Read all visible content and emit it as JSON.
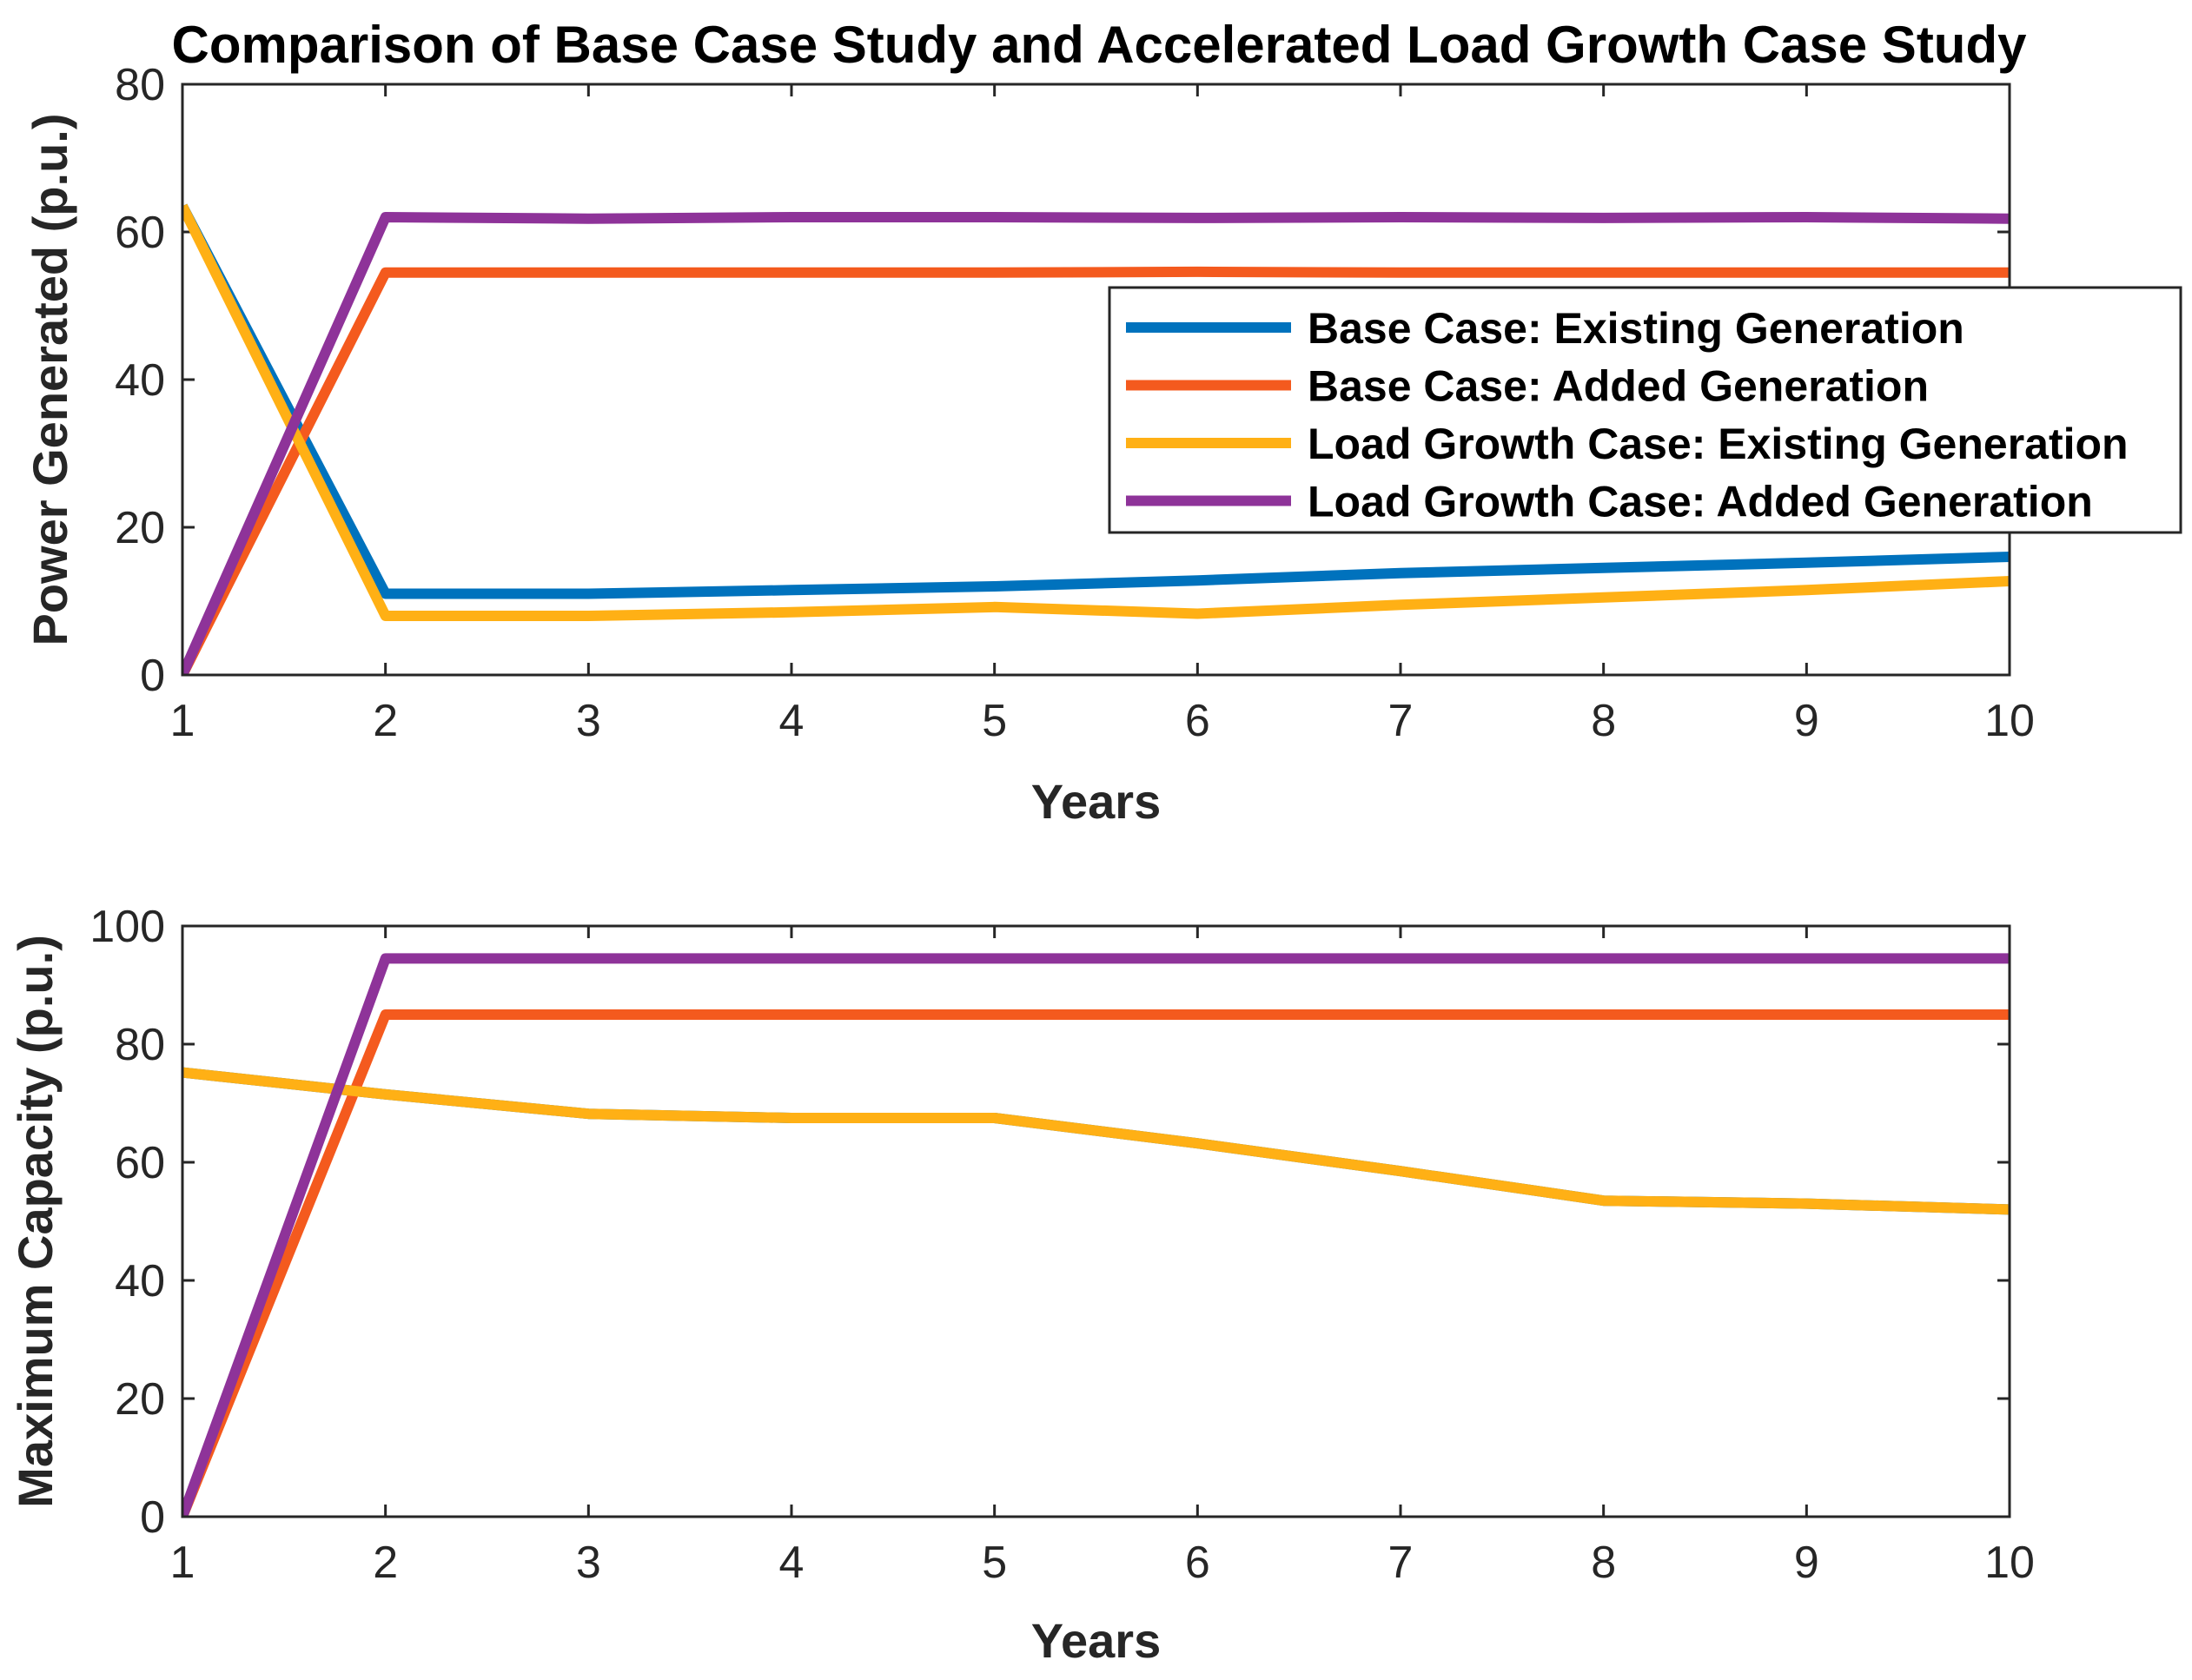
{
  "chart_data": [
    {
      "type": "line",
      "title": "Comparison of Base Case Study and Accelerated Load Growth Case Study",
      "xlabel": "Years",
      "ylabel": "Power Generated (p.u.)",
      "x": [
        1,
        2,
        3,
        4,
        5,
        6,
        7,
        8,
        9,
        10
      ],
      "xlim": [
        1,
        10
      ],
      "ylim": [
        0,
        80
      ],
      "xticks": [
        1,
        2,
        3,
        4,
        5,
        6,
        7,
        8,
        9,
        10
      ],
      "yticks": [
        0,
        20,
        40,
        60,
        80
      ],
      "legend_position": "right",
      "series": [
        {
          "name": "Base Case: Existing Generation",
          "color": "#0072BD",
          "values": [
            63.5,
            11.0,
            11.0,
            11.5,
            12.0,
            12.8,
            13.8,
            14.5,
            15.2,
            16.0
          ]
        },
        {
          "name": "Base Case: Added Generation",
          "color": "#F45A1E",
          "values": [
            0,
            54.5,
            54.5,
            54.5,
            54.5,
            54.6,
            54.5,
            54.5,
            54.5,
            54.5
          ]
        },
        {
          "name": "Load Growth Case: Existing Generation",
          "color": "#FFB015",
          "values": [
            63.5,
            8.0,
            8.0,
            8.5,
            9.2,
            8.3,
            9.5,
            10.5,
            11.5,
            12.7
          ]
        },
        {
          "name": "Load Growth Case: Added Generation",
          "color": "#8E3399",
          "values": [
            0,
            62.0,
            61.8,
            62.0,
            62.0,
            61.9,
            62.0,
            61.9,
            62.0,
            61.8
          ]
        }
      ]
    },
    {
      "type": "line",
      "title": "",
      "xlabel": "Years",
      "ylabel": "Maximum Capacity (p.u.)",
      "x": [
        1,
        2,
        3,
        4,
        5,
        6,
        7,
        8,
        9,
        10
      ],
      "xlim": [
        1,
        10
      ],
      "ylim": [
        0,
        100
      ],
      "xticks": [
        1,
        2,
        3,
        4,
        5,
        6,
        7,
        8,
        9,
        10
      ],
      "yticks": [
        0,
        20,
        40,
        60,
        80,
        100
      ],
      "series": [
        {
          "name": "Base Case: Existing Generation",
          "color": "#0072BD",
          "values": [
            75.2,
            71.5,
            68.2,
            67.5,
            67.5,
            63.2,
            58.5,
            53.5,
            53.0,
            52.0
          ]
        },
        {
          "name": "Base Case: Added Generation",
          "color": "#F45A1E",
          "values": [
            0,
            85.0,
            85.0,
            85.0,
            85.0,
            85.0,
            85.0,
            85.0,
            85.0,
            85.0
          ]
        },
        {
          "name": "Load Growth Case: Existing Generation",
          "color": "#FFB015",
          "values": [
            75.2,
            71.5,
            68.2,
            67.5,
            67.5,
            63.2,
            58.5,
            53.5,
            53.0,
            52.0
          ]
        },
        {
          "name": "Load Growth Case: Added Generation",
          "color": "#8E3399",
          "values": [
            0,
            94.5,
            94.5,
            94.5,
            94.5,
            94.5,
            94.5,
            94.5,
            94.5,
            94.5
          ]
        }
      ]
    }
  ]
}
